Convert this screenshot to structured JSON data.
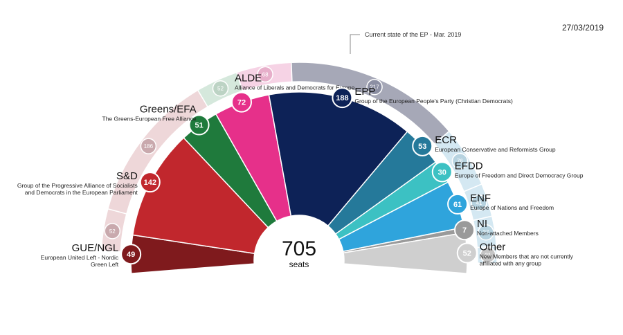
{
  "date": "27/03/2019",
  "total": {
    "value": "705",
    "unit": "seats"
  },
  "chart_data": {
    "type": "pie",
    "total_seats": 705,
    "previous_state_label": "Current state of the EP - Mar. 2019",
    "new_parliament": [
      {
        "id": "gue",
        "abbr": "GUE/NGL",
        "full": [
          "European United Left - Nordic",
          "Green Left"
        ],
        "seats": 49,
        "color": "#7f1a1d"
      },
      {
        "id": "sd",
        "abbr": "S&D",
        "full": [
          "Group of the Progressive Alliance of Socialists",
          "and Democrats in the European Parliament"
        ],
        "seats": 142,
        "color": "#c1272d"
      },
      {
        "id": "greens",
        "abbr": "Greens/EFA",
        "full": [
          "The Greens-European Free Alliance"
        ],
        "seats": 51,
        "color": "#1f7a3c"
      },
      {
        "id": "alde",
        "abbr": "ALDE",
        "full": [
          "Alliance of Liberals and Democrats for Europe"
        ],
        "seats": 72,
        "color": "#e6308a"
      },
      {
        "id": "epp",
        "abbr": "EPP",
        "full": [
          "Group of the European People's Party (Christian Democrats)"
        ],
        "seats": 188,
        "color": "#0d2257"
      },
      {
        "id": "ecr",
        "abbr": "ECR",
        "full": [
          "European Conservative and Reformists Group"
        ],
        "seats": 53,
        "color": "#25799a"
      },
      {
        "id": "efdd",
        "abbr": "EFDD",
        "full": [
          "Europe of Freedom and Direct Democracy Group"
        ],
        "seats": 30,
        "color": "#3cc1c3"
      },
      {
        "id": "enf",
        "abbr": "ENF",
        "full": [
          "Europe of Nations and Freedom"
        ],
        "seats": 61,
        "color": "#2fa4dc"
      },
      {
        "id": "ni",
        "abbr": "NI",
        "full": [
          "Non-attached Members"
        ],
        "seats": 7,
        "color": "#9a9a9a"
      },
      {
        "id": "other",
        "abbr": "Other",
        "full": [
          "New Members that are not currently",
          "affiliated with any group"
        ],
        "seats": 52,
        "color": "#cfcfcf"
      }
    ],
    "current_state": [
      {
        "id": "gue",
        "seats": 52,
        "color": "#eed7d9",
        "badge": "#c9a9ad"
      },
      {
        "id": "sd",
        "seats": 186,
        "color": "#eed7d9",
        "badge": "#c9a9ad"
      },
      {
        "id": "greens",
        "seats": 52,
        "color": "#d5e8dc",
        "badge": "#bcd3c4"
      },
      {
        "id": "alde",
        "seats": 68,
        "color": "#f6d3e5",
        "badge": "#e7afca"
      },
      {
        "id": "epp",
        "seats": 217,
        "color": "#a6a8b7",
        "badge": "#8c8fa3"
      },
      {
        "id": "ecr",
        "seats": 76,
        "color": "#d4e8f2",
        "badge": "#b7d3e0"
      },
      {
        "id": "efdd",
        "seats": 41,
        "color": "#d4e8f2",
        "badge": "#b7d3e0"
      },
      {
        "id": "enf",
        "seats": 37,
        "color": "#d4e8f2",
        "badge": "#b7d3e0"
      },
      {
        "id": "ni",
        "seats": 21,
        "color": "#d4e8f2",
        "badge": "#c5c5c5"
      }
    ]
  }
}
